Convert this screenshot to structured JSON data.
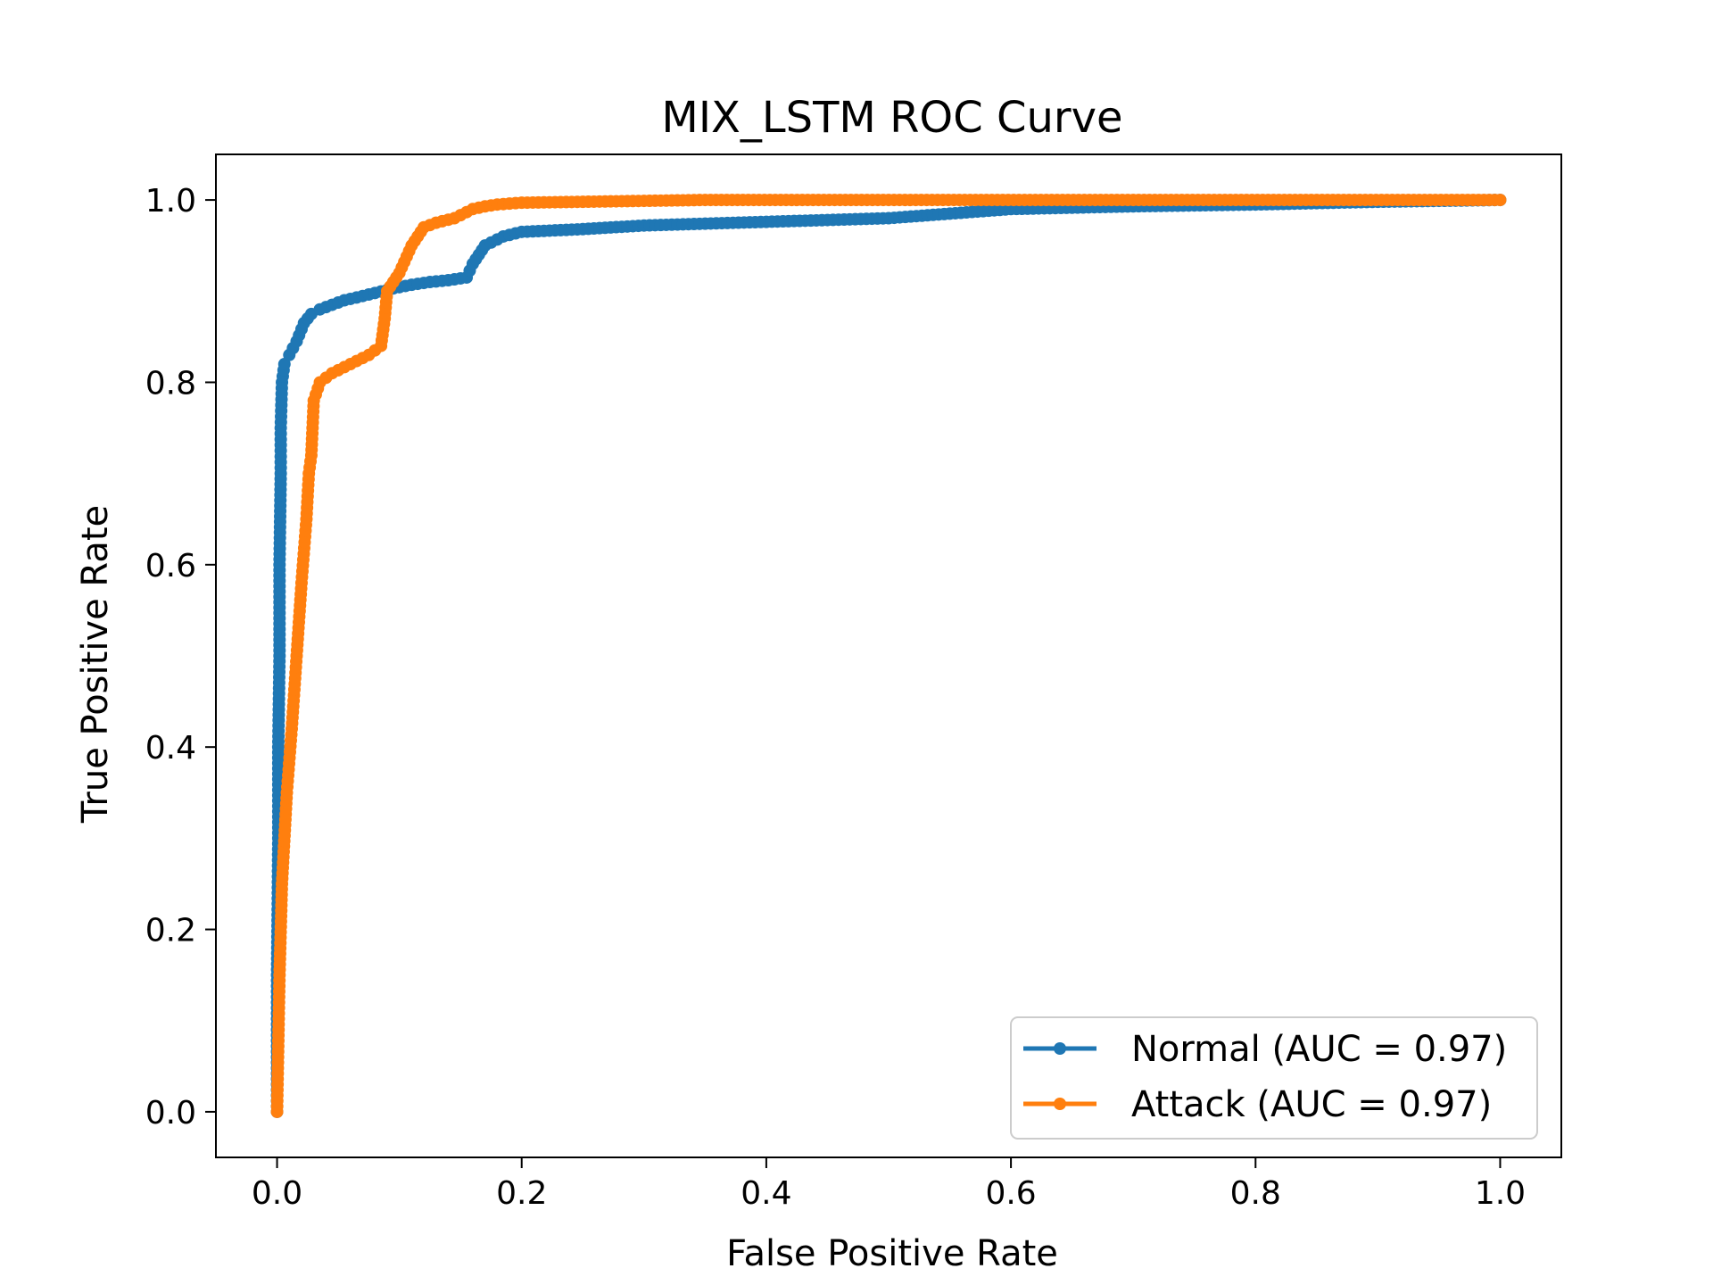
{
  "chart_data": {
    "type": "line",
    "title": "MIX_LSTM ROC Curve",
    "xlabel": "False Positive Rate",
    "ylabel": "True Positive Rate",
    "xlim": [
      -0.05,
      1.05
    ],
    "ylim": [
      -0.05,
      1.05
    ],
    "xticks": [
      "0.0",
      "0.2",
      "0.4",
      "0.6",
      "0.8",
      "1.0"
    ],
    "yticks": [
      "0.0",
      "0.2",
      "0.4",
      "0.6",
      "0.8",
      "1.0"
    ],
    "grid": false,
    "legend_position": "lower-right",
    "series": [
      {
        "name": "Normal (AUC = 0.97)",
        "color": "#1f77b4",
        "marker": "dot",
        "x": [
          0.0,
          0.0,
          0.0,
          0.001,
          0.001,
          0.002,
          0.002,
          0.003,
          0.003,
          0.004,
          0.006,
          0.01,
          0.016,
          0.022,
          0.028,
          0.035,
          0.045,
          0.055,
          0.065,
          0.08,
          0.095,
          0.11,
          0.125,
          0.14,
          0.155,
          0.16,
          0.17,
          0.185,
          0.2,
          0.25,
          0.3,
          0.35,
          0.4,
          0.45,
          0.5,
          0.55,
          0.6,
          0.7,
          0.8,
          0.9,
          1.0
        ],
        "y": [
          0.0,
          0.06,
          0.15,
          0.3,
          0.4,
          0.5,
          0.6,
          0.7,
          0.75,
          0.8,
          0.82,
          0.83,
          0.845,
          0.865,
          0.875,
          0.88,
          0.885,
          0.89,
          0.893,
          0.898,
          0.903,
          0.907,
          0.91,
          0.912,
          0.915,
          0.93,
          0.95,
          0.96,
          0.965,
          0.968,
          0.972,
          0.974,
          0.976,
          0.978,
          0.98,
          0.985,
          0.99,
          0.993,
          0.995,
          0.998,
          1.0
        ]
      },
      {
        "name": "Attack (AUC = 0.97)",
        "color": "#ff7f0e",
        "marker": "dot",
        "x": [
          0.0,
          0.002,
          0.004,
          0.008,
          0.012,
          0.016,
          0.02,
          0.024,
          0.026,
          0.028,
          0.03,
          0.035,
          0.045,
          0.06,
          0.075,
          0.085,
          0.088,
          0.09,
          0.095,
          0.1,
          0.11,
          0.12,
          0.13,
          0.145,
          0.16,
          0.17,
          0.18,
          0.2,
          0.25,
          0.3,
          0.35,
          0.5,
          0.7,
          1.0
        ],
        "y": [
          0.0,
          0.15,
          0.25,
          0.35,
          0.42,
          0.5,
          0.58,
          0.65,
          0.7,
          0.72,
          0.78,
          0.8,
          0.81,
          0.82,
          0.83,
          0.84,
          0.87,
          0.9,
          0.91,
          0.92,
          0.95,
          0.97,
          0.975,
          0.98,
          0.99,
          0.993,
          0.995,
          0.997,
          0.998,
          0.999,
          1.0,
          1.0,
          1.0,
          1.0
        ]
      }
    ]
  }
}
